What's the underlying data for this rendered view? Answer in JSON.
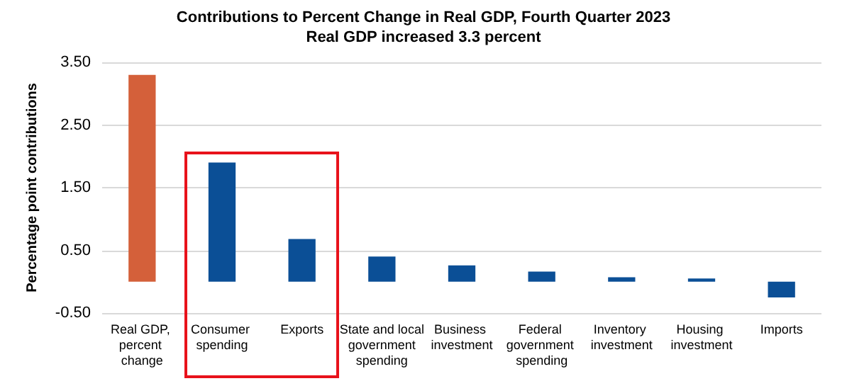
{
  "chart_data": {
    "type": "bar",
    "title": "Contributions to Percent Change in Real GDP, Fourth Quarter 2023",
    "subtitle": "Real GDP increased 3.3 percent",
    "ylabel": "Percentage point contributions",
    "categories": [
      "Real GDP, percent change",
      "Consumer spending",
      "Exports",
      "State and local government spending",
      "Business investment",
      "Federal government spending",
      "Inventory investment",
      "Housing investment",
      "Imports"
    ],
    "values": [
      3.3,
      1.9,
      0.68,
      0.4,
      0.26,
      0.16,
      0.07,
      0.05,
      -0.25
    ],
    "colors": [
      "#d4603a",
      "#0b4f96",
      "#0b4f96",
      "#0b4f96",
      "#0b4f96",
      "#0b4f96",
      "#0b4f96",
      "#0b4f96",
      "#0b4f96"
    ],
    "ylim": [
      -0.5,
      3.5
    ],
    "yticks": [
      {
        "value": -0.5,
        "label": "-0.50"
      },
      {
        "value": 0.5,
        "label": "0.50"
      },
      {
        "value": 1.5,
        "label": "1.50"
      },
      {
        "value": 2.5,
        "label": "2.50"
      },
      {
        "value": 3.5,
        "label": "3.50"
      }
    ],
    "grid": "y"
  }
}
